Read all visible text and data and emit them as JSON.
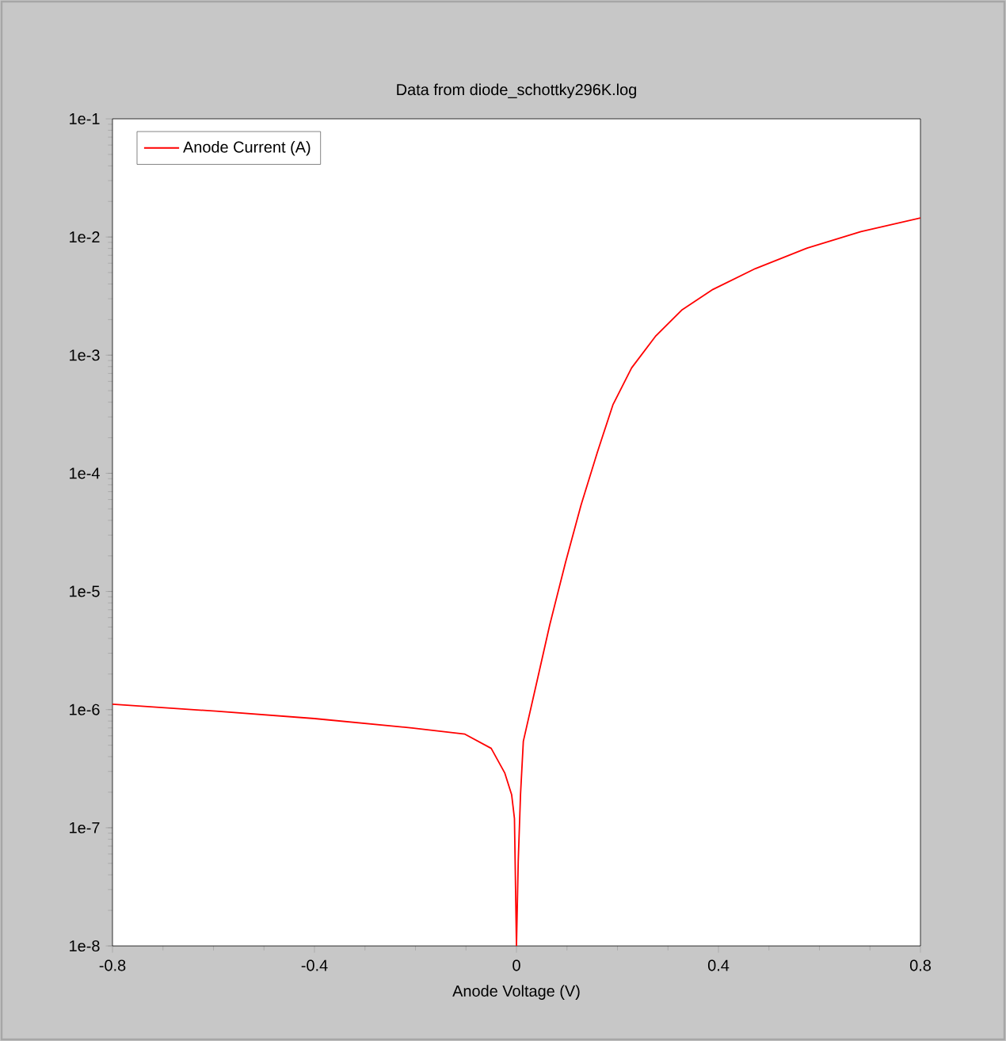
{
  "chart_data": {
    "type": "line",
    "title": "Data from diode_schottky296K.log",
    "xlabel": "Anode Voltage (V)",
    "log": "y",
    "legend": "top left",
    "grid": false,
    "marker": "none",
    "line_style": "solid",
    "xlim": [
      -0.8,
      0.8
    ],
    "xticks": [
      -0.8,
      -0.4,
      0,
      0.4,
      0.8
    ],
    "ylim": [
      1e-08,
      0.1
    ],
    "yticks": [
      {
        "value": 1e-08,
        "label": "1e-8"
      },
      {
        "value": 1e-07,
        "label": "1e-7"
      },
      {
        "value": 1e-06,
        "label": "1e-6"
      },
      {
        "value": 1e-05,
        "label": "1e-5"
      },
      {
        "value": 0.0001,
        "label": "1e-4"
      },
      {
        "value": 0.001,
        "label": "1e-3"
      },
      {
        "value": 0.01,
        "label": "1e-2"
      },
      {
        "value": 0.1,
        "label": "1e-1"
      }
    ],
    "series": [
      {
        "name": "Anode Current (A)",
        "color": "#ff0000",
        "x": [
          -0.8,
          -0.595,
          -0.4,
          -0.207,
          -0.102,
          -0.05,
          -0.023,
          -0.0095,
          -0.004,
          0,
          0.0035,
          0.008,
          0.0136,
          0.0397,
          0.0658,
          0.0971,
          0.128,
          0.16,
          0.191,
          0.228,
          0.275,
          0.327,
          0.389,
          0.473,
          0.577,
          0.682,
          0.8
        ],
        "values": [
          1.11e-06,
          9.7e-07,
          8.4e-07,
          7e-07,
          6.2e-07,
          4.7e-07,
          2.9e-07,
          1.9e-07,
          1.2e-07,
          1e-08,
          5.2e-08,
          1.9e-07,
          5.4e-07,
          1.67e-06,
          5.2e-06,
          1.76e-05,
          5.4e-05,
          0.00015,
          0.00038,
          0.00078,
          0.00144,
          0.0024,
          0.0036,
          0.0054,
          0.0081,
          0.0111,
          0.0145
        ]
      }
    ]
  }
}
